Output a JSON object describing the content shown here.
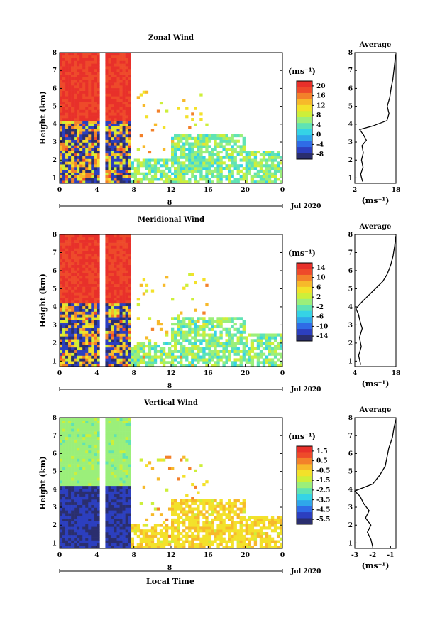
{
  "colors": {
    "scale": [
      "#2a2e6e",
      "#2c3fbf",
      "#2f6be6",
      "#2fa6ea",
      "#35d3e6",
      "#5fe3b4",
      "#9bef7a",
      "#cdef3a",
      "#f3e12a",
      "#f7b92a",
      "#f3812a",
      "#ee4a2a",
      "#e8302a"
    ],
    "line": "#000000"
  },
  "footer": {
    "xlabel": "Local Time"
  },
  "chart_data": [
    {
      "type": "heatmap",
      "title": "Zonal Wind",
      "ylabel": "Height (km)",
      "xlim": [
        0,
        24
      ],
      "ylim": [
        0.7,
        8
      ],
      "x_ticks": [
        "0",
        "4",
        "8",
        "12",
        "16",
        "20",
        "0"
      ],
      "x_tick_values": [
        0,
        4,
        8,
        12,
        16,
        20,
        24
      ],
      "y_ticks": [
        "1",
        "2",
        "3",
        "4",
        "5",
        "6",
        "7",
        "8"
      ],
      "day_label": "8",
      "date_label": "Jul 2020",
      "colorbar": {
        "unit": "(ms⁻¹)",
        "ticks": [
          "20",
          "16",
          "12",
          "8",
          "4",
          "0",
          "-4",
          "-8"
        ],
        "min": -10,
        "max": 22
      },
      "profile": {
        "title": "Average",
        "xlabel": "(ms⁻¹)",
        "xlim": [
          2,
          18
        ],
        "x_ticks": [
          "2",
          "18"
        ],
        "y_ticks": [
          "1",
          "2",
          "3",
          "4",
          "5",
          "6",
          "7",
          "8"
        ],
        "points": [
          [
            5,
            0.8
          ],
          [
            4.3,
            1.2
          ],
          [
            5.2,
            1.6
          ],
          [
            4.6,
            2.0
          ],
          [
            5.3,
            2.4
          ],
          [
            4.8,
            2.8
          ],
          [
            6.5,
            3.1
          ],
          [
            5.4,
            3.4
          ],
          [
            3.9,
            3.7
          ],
          [
            9.0,
            3.9
          ],
          [
            14.5,
            4.2
          ],
          [
            15.3,
            4.6
          ],
          [
            14.6,
            5.0
          ],
          [
            15.6,
            5.5
          ],
          [
            16.1,
            6.0
          ],
          [
            16.8,
            6.5
          ],
          [
            17.2,
            7.0
          ],
          [
            17.6,
            7.5
          ],
          [
            17.8,
            7.9
          ]
        ]
      }
    },
    {
      "type": "heatmap",
      "title": "Meridional Wind",
      "ylabel": "Height (km)",
      "xlim": [
        0,
        24
      ],
      "ylim": [
        0.7,
        8
      ],
      "x_ticks": [
        "0",
        "4",
        "8",
        "12",
        "16",
        "20",
        "0"
      ],
      "x_tick_values": [
        0,
        4,
        8,
        12,
        16,
        20,
        24
      ],
      "y_ticks": [
        "1",
        "2",
        "3",
        "4",
        "5",
        "6",
        "7",
        "8"
      ],
      "day_label": "8",
      "date_label": "Jul 2020",
      "colorbar": {
        "unit": "(ms⁻¹)",
        "ticks": [
          "14",
          "10",
          "6",
          "2",
          "-2",
          "-6",
          "-10",
          "-14"
        ],
        "min": -16,
        "max": 16
      },
      "profile": {
        "title": "Average",
        "xlabel": "(ms⁻¹)",
        "xlim": [
          4,
          18
        ],
        "x_ticks": [
          "4",
          "18"
        ],
        "y_ticks": [
          "1",
          "2",
          "3",
          "4",
          "5",
          "6",
          "7",
          "8"
        ],
        "points": [
          [
            6.0,
            0.8
          ],
          [
            5.3,
            1.3
          ],
          [
            6.2,
            1.8
          ],
          [
            5.6,
            2.3
          ],
          [
            6.5,
            2.8
          ],
          [
            5.8,
            3.2
          ],
          [
            5.2,
            3.6
          ],
          [
            4.4,
            3.9
          ],
          [
            6.0,
            4.2
          ],
          [
            8.5,
            4.6
          ],
          [
            11.0,
            5.0
          ],
          [
            13.5,
            5.4
          ],
          [
            15.0,
            5.8
          ],
          [
            16.2,
            6.3
          ],
          [
            17.0,
            6.8
          ],
          [
            17.6,
            7.4
          ],
          [
            17.9,
            7.9
          ]
        ]
      }
    },
    {
      "type": "heatmap",
      "title": "Vertical Wind",
      "ylabel": "Height (km)",
      "xlim": [
        0,
        24
      ],
      "ylim": [
        0.7,
        8
      ],
      "x_ticks": [
        "0",
        "4",
        "8",
        "12",
        "16",
        "20",
        "0"
      ],
      "x_tick_values": [
        0,
        4,
        8,
        12,
        16,
        20,
        24
      ],
      "y_ticks": [
        "1",
        "2",
        "3",
        "4",
        "5",
        "6",
        "7",
        "8"
      ],
      "day_label": "8",
      "date_label": "Jul 2020",
      "colorbar": {
        "unit": "(ms⁻¹)",
        "ticks": [
          "1.5",
          "0.5",
          "-0.5",
          "-1.5",
          "-2.5",
          "-3.5",
          "-4.5",
          "-5.5"
        ],
        "min": -6,
        "max": 2
      },
      "profile": {
        "title": "Average",
        "xlabel": "(ms⁻¹)",
        "xlim": [
          -3,
          -0.7
        ],
        "x_ticks": [
          "-3",
          "-2",
          "-1"
        ],
        "x_tick_values": [
          -3,
          -2,
          -1
        ],
        "y_ticks": [
          "1",
          "2",
          "3",
          "4",
          "5",
          "6",
          "7",
          "8"
        ],
        "points": [
          [
            -2.0,
            0.8
          ],
          [
            -2.1,
            1.2
          ],
          [
            -2.3,
            1.6
          ],
          [
            -2.1,
            2.0
          ],
          [
            -2.4,
            2.4
          ],
          [
            -2.2,
            2.8
          ],
          [
            -2.5,
            3.2
          ],
          [
            -2.7,
            3.6
          ],
          [
            -3.0,
            3.9
          ],
          [
            -2.0,
            4.3
          ],
          [
            -1.6,
            4.8
          ],
          [
            -1.3,
            5.3
          ],
          [
            -1.2,
            5.8
          ],
          [
            -1.1,
            6.3
          ],
          [
            -0.9,
            6.9
          ],
          [
            -0.8,
            7.5
          ],
          [
            -0.7,
            7.9
          ]
        ]
      }
    }
  ]
}
